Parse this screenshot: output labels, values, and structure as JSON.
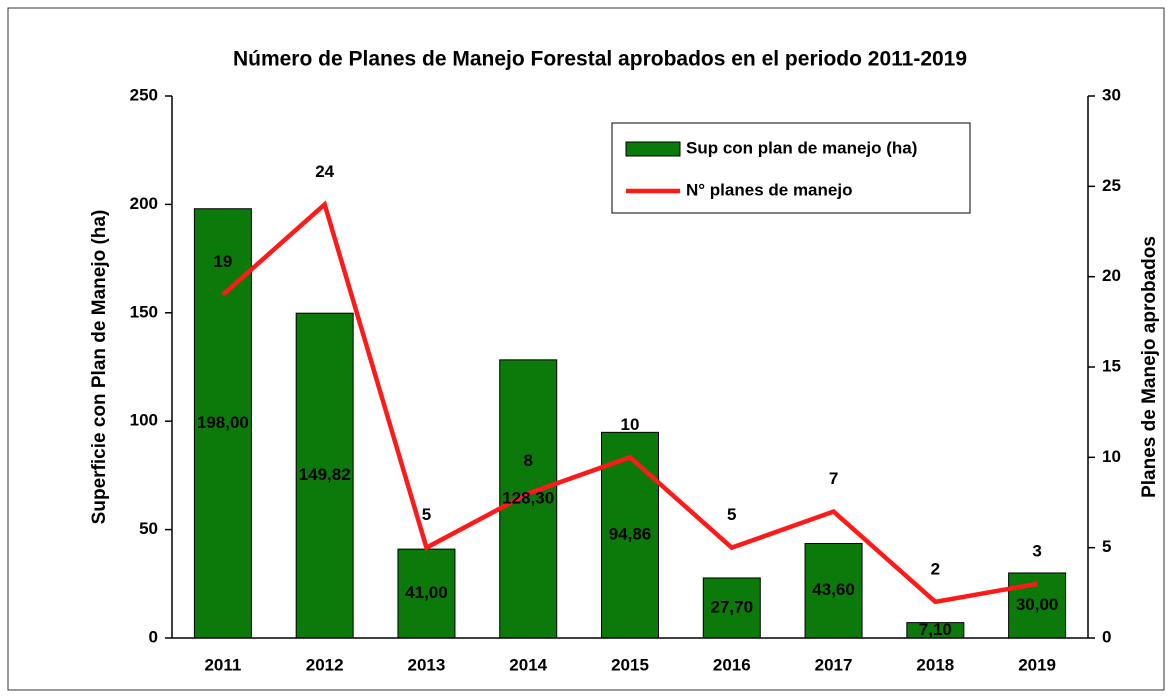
{
  "chart_data": {
    "type": "bar-line",
    "title": "Número de Planes de Manejo Forestal aprobados en el periodo 2011-2019",
    "y_label": "Superficie con Plan de Manejo (ha)",
    "y2_label": "Planes de Manejo aprobados",
    "categories": [
      "2011",
      "2012",
      "2013",
      "2014",
      "2015",
      "2016",
      "2017",
      "2018",
      "2019"
    ],
    "series": [
      {
        "name": "Sup con plan de manejo (ha)",
        "type": "bar",
        "color": "#0b7a0b",
        "axis": "y",
        "values": [
          198,
          149.82,
          41,
          128.3,
          94.86,
          27.7,
          43.6,
          7.1,
          30
        ],
        "value_labels": [
          "198,00",
          "149,82",
          "41,00",
          "128,30",
          "94,86",
          "27,70",
          "43,60",
          "7,10",
          "30,00"
        ]
      },
      {
        "name": "N° planes de manejo",
        "type": "line",
        "color": "#ff1a1a",
        "axis": "y2",
        "values": [
          19,
          24,
          5,
          8,
          10,
          5,
          7,
          2,
          3
        ]
      }
    ],
    "ylim": [
      0,
      250
    ],
    "yticks": [
      0,
      50,
      100,
      150,
      200,
      250
    ],
    "y2lim": [
      0,
      30
    ],
    "y2ticks": [
      0,
      5,
      10,
      15,
      20,
      25,
      30
    ],
    "legend": "top-right"
  }
}
